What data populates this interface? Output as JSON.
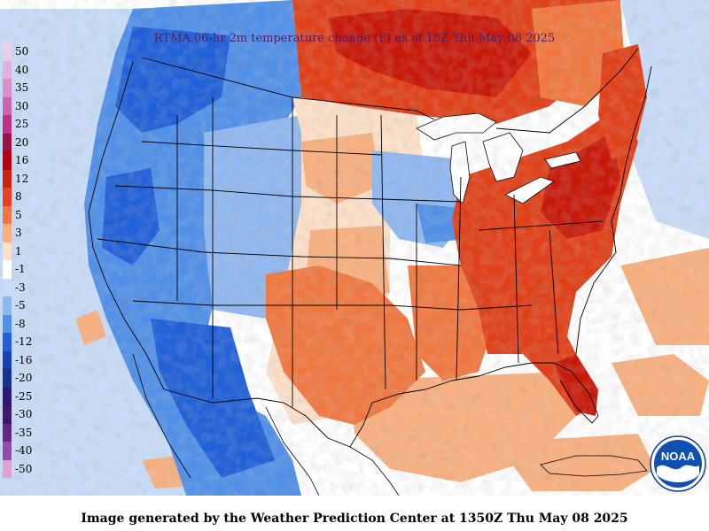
{
  "map": {
    "title": "RTMA 06-hr 2m temperature change (F) as of 13Z Thu May 08 2025",
    "footer": "Image generated by the Weather Prediction Center at 1350Z Thu May 08 2025",
    "logo_text": "NOAA",
    "legend": [
      {
        "label": "50",
        "color": "#e8d0e8"
      },
      {
        "label": "40",
        "color": "#e0b0e0"
      },
      {
        "label": "35",
        "color": "#d890c8"
      },
      {
        "label": "30",
        "color": "#d060b0"
      },
      {
        "label": "25",
        "color": "#c03088"
      },
      {
        "label": "20",
        "color": "#a01040"
      },
      {
        "label": "16",
        "color": "#b80010"
      },
      {
        "label": "12",
        "color": "#d02010"
      },
      {
        "label": "8",
        "color": "#e84020"
      },
      {
        "label": "5",
        "color": "#f07840"
      },
      {
        "label": "3",
        "color": "#f8b080"
      },
      {
        "label": "1",
        "color": "#fde0c8"
      },
      {
        "label": "-1",
        "color": "#ffffff"
      },
      {
        "label": "-3",
        "color": "#c8dcf8"
      },
      {
        "label": "-5",
        "color": "#90b8f0"
      },
      {
        "label": "-8",
        "color": "#5090e8"
      },
      {
        "label": "-12",
        "color": "#2060d8"
      },
      {
        "label": "-16",
        "color": "#1840b0"
      },
      {
        "label": "-20",
        "color": "#183090"
      },
      {
        "label": "-25",
        "color": "#281878"
      },
      {
        "label": "-30",
        "color": "#401868"
      },
      {
        "label": "-35",
        "color": "#602880"
      },
      {
        "label": "-40",
        "color": "#9050a8"
      },
      {
        "label": "-50",
        "color": "#e0a0d0"
      }
    ],
    "colors": {
      "deep_red": "#c81808",
      "red": "#e04018",
      "orange": "#f07840",
      "light_orange": "#f8b080",
      "pale": "#fde0c8",
      "light_blue": "#c8dcf8",
      "mid_blue": "#90b8f0",
      "blue": "#5090e8",
      "deep_blue": "#2060d8",
      "ocean": "#ffffff",
      "border": "#000000"
    }
  }
}
